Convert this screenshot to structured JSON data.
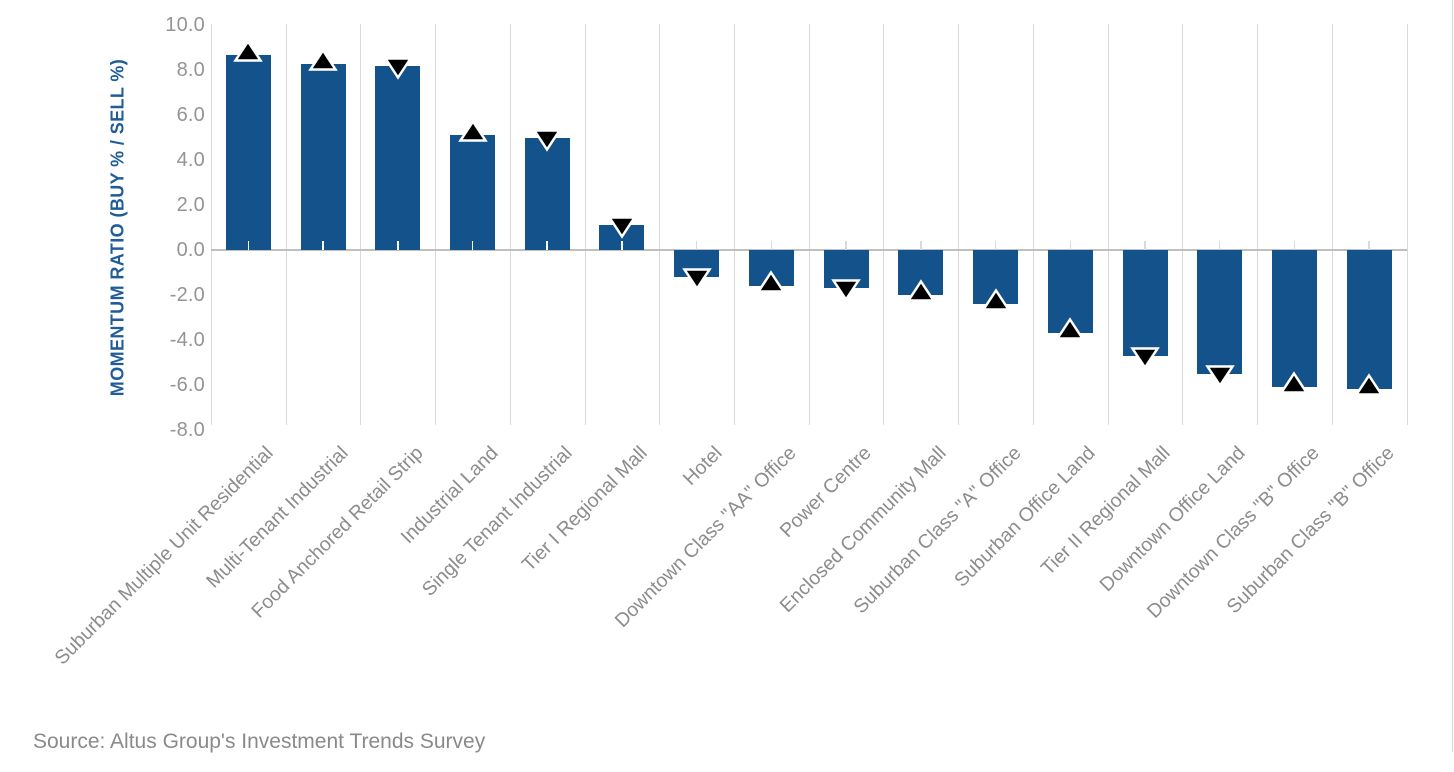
{
  "source_note": "Source: Altus Group's Investment Trends Survey",
  "chart_data": {
    "type": "bar",
    "title": "",
    "ylabel": "MOMENTUM RATIO (BUY % / SELL %)",
    "xlabel": "",
    "ylim": [
      -8.0,
      10.0
    ],
    "y_tick_step": 2.0,
    "y_tick_labels": [
      "10.0",
      "8.0",
      "6.0",
      "4.0",
      "2.0",
      "0.0",
      "-2.0",
      "-4.0",
      "-6.0",
      "-8.0"
    ],
    "grid": "vertical-category-separators-only",
    "legend": "none",
    "categories": [
      "Suburban Multiple Unit Residential",
      "Multi-Tenant Industrial",
      "Food Anchored Retail Strip",
      "Industrial Land",
      "Single Tenant Industrial",
      "Tier I Regional Mall",
      "Hotel",
      "Downtown Class \"AA\" Office",
      "Power Centre",
      "Enclosed Community Mall",
      "Suburban Class \"A\" Office",
      "Suburban Office Land",
      "Tier II Regional Mall",
      "Downtown Office Land",
      "Downtown Class \"B\" Office",
      "Suburban Class \"B\" Office"
    ],
    "values": [
      8.7,
      8.3,
      8.2,
      5.1,
      5.0,
      1.1,
      -1.2,
      -1.6,
      -1.7,
      -2.0,
      -2.4,
      -3.7,
      -4.7,
      -5.5,
      -6.1,
      -6.2
    ],
    "marker_directions": [
      "up",
      "up",
      "down",
      "up",
      "down",
      "down",
      "down",
      "up",
      "down",
      "up",
      "up",
      "up",
      "down",
      "down",
      "up",
      "up"
    ],
    "colors": {
      "bar": "#14528c",
      "marker_fill": "#000000",
      "marker_outline": "#ffffff",
      "y_axis_title": "#1f5c99",
      "tick_label": "#949494",
      "category_label": "#8c8c8c",
      "gridline": "#d9d9d9",
      "zero_axis_line": "#bfbfbf",
      "source_text": "#8a8a8a"
    }
  }
}
